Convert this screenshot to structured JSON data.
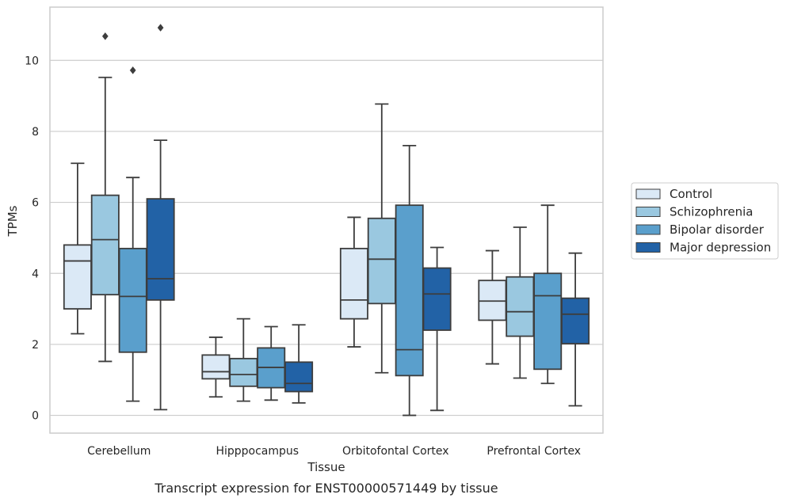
{
  "chart_data": {
    "type": "box",
    "title": "Transcript expression for ENST00000571449 by tissue",
    "xlabel": "Tissue",
    "ylabel": "TPMs",
    "ylim": [
      -0.5,
      11.5
    ],
    "yticks": [
      0,
      2,
      4,
      6,
      8,
      10
    ],
    "grid": true,
    "legend_position": "right",
    "categories": [
      "Cerebellum",
      "Hipppocampus",
      "Orbitofontal Cortex",
      "Prefrontal Cortex"
    ],
    "series": [
      {
        "name": "Control",
        "color": "#dbe9f6",
        "boxes": [
          {
            "whisker_low": 2.3,
            "q1": 3.0,
            "median": 4.35,
            "q3": 4.8,
            "whisker_high": 7.1,
            "outliers": []
          },
          {
            "whisker_low": 0.52,
            "q1": 1.03,
            "median": 1.23,
            "q3": 1.7,
            "whisker_high": 2.2,
            "outliers": []
          },
          {
            "whisker_low": 1.93,
            "q1": 2.72,
            "median": 3.25,
            "q3": 4.7,
            "whisker_high": 5.58,
            "outliers": []
          },
          {
            "whisker_low": 1.45,
            "q1": 2.68,
            "median": 3.22,
            "q3": 3.8,
            "whisker_high": 4.64,
            "outliers": []
          }
        ]
      },
      {
        "name": "Schizophrenia",
        "color": "#9ac8e0",
        "boxes": [
          {
            "whisker_low": 1.52,
            "q1": 3.4,
            "median": 4.95,
            "q3": 6.2,
            "whisker_high": 9.52,
            "outliers": [
              10.68
            ]
          },
          {
            "whisker_low": 0.4,
            "q1": 0.82,
            "median": 1.15,
            "q3": 1.6,
            "whisker_high": 2.72,
            "outliers": []
          },
          {
            "whisker_low": 1.2,
            "q1": 3.15,
            "median": 4.4,
            "q3": 5.55,
            "whisker_high": 8.77,
            "outliers": []
          },
          {
            "whisker_low": 1.05,
            "q1": 2.23,
            "median": 2.92,
            "q3": 3.9,
            "whisker_high": 5.3,
            "outliers": []
          }
        ]
      },
      {
        "name": "Bipolar disorder",
        "color": "#5a9fcc",
        "boxes": [
          {
            "whisker_low": 0.4,
            "q1": 1.78,
            "median": 3.35,
            "q3": 4.7,
            "whisker_high": 6.7,
            "outliers": [
              9.72
            ]
          },
          {
            "whisker_low": 0.43,
            "q1": 0.78,
            "median": 1.35,
            "q3": 1.9,
            "whisker_high": 2.5,
            "outliers": []
          },
          {
            "whisker_low": 0.0,
            "q1": 1.12,
            "median": 1.85,
            "q3": 5.92,
            "whisker_high": 7.6,
            "outliers": []
          },
          {
            "whisker_low": 0.9,
            "q1": 1.3,
            "median": 3.37,
            "q3": 4.0,
            "whisker_high": 5.92,
            "outliers": []
          }
        ]
      },
      {
        "name": "Major depression",
        "color": "#2262a6",
        "boxes": [
          {
            "whisker_low": 0.16,
            "q1": 3.25,
            "median": 3.85,
            "q3": 6.1,
            "whisker_high": 7.75,
            "outliers": [
              10.92
            ]
          },
          {
            "whisker_low": 0.35,
            "q1": 0.67,
            "median": 0.9,
            "q3": 1.5,
            "whisker_high": 2.55,
            "outliers": []
          },
          {
            "whisker_low": 0.14,
            "q1": 2.4,
            "median": 3.42,
            "q3": 4.15,
            "whisker_high": 4.73,
            "outliers": []
          },
          {
            "whisker_low": 0.27,
            "q1": 2.02,
            "median": 2.85,
            "q3": 3.3,
            "whisker_high": 4.57,
            "outliers": []
          }
        ]
      }
    ]
  }
}
